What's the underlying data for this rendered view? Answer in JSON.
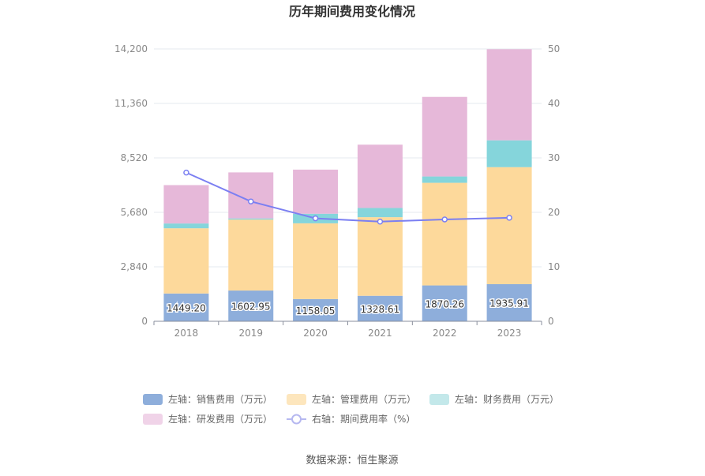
{
  "chart_data": {
    "type": "bar",
    "title": "历年期间费用变化情况",
    "source_text": "数据来源：恒生聚源",
    "categories": [
      "2018",
      "2019",
      "2020",
      "2021",
      "2022",
      "2023"
    ],
    "y_left": {
      "ticks": [
        "0",
        "2,840",
        "5,680",
        "8,520",
        "11,360",
        "14,200"
      ],
      "ylim": [
        0,
        14200
      ]
    },
    "y_right": {
      "ticks": [
        "0",
        "10",
        "20",
        "30",
        "40",
        "50"
      ],
      "ylim": [
        0,
        50
      ]
    },
    "series": [
      {
        "name": "左轴：销售费用（万元）",
        "axis": "left",
        "kind": "bar",
        "color": "#8eaedb",
        "values": [
          1449.2,
          1602.95,
          1158.05,
          1328.61,
          1870.26,
          1935.91
        ],
        "labels": [
          "1449.20",
          "1602.95",
          "1158.05",
          "1328.61",
          "1870.26",
          "1935.91"
        ]
      },
      {
        "name": "左轴：管理费用（万元）",
        "axis": "left",
        "kind": "bar",
        "color": "#fdd99b",
        "values": [
          3400,
          3700,
          3950,
          4100,
          5350,
          6100
        ]
      },
      {
        "name": "左轴：财务费用（万元）",
        "axis": "left",
        "kind": "bar",
        "color": "#85d5db",
        "values": [
          250,
          60,
          500,
          480,
          330,
          1400
        ]
      },
      {
        "name": "左轴：研发费用（万元）",
        "axis": "left",
        "kind": "bar",
        "color": "#e6b8d9",
        "values": [
          2000,
          2400,
          2300,
          3300,
          4150,
          4750
        ]
      },
      {
        "name": "右轴：期间费用率（%）",
        "axis": "right",
        "kind": "line",
        "color": "#7b7ff2",
        "values": [
          27.3,
          22.0,
          18.9,
          18.3,
          18.7,
          19.0
        ]
      }
    ],
    "grid": true,
    "legend_position": "bottom"
  }
}
